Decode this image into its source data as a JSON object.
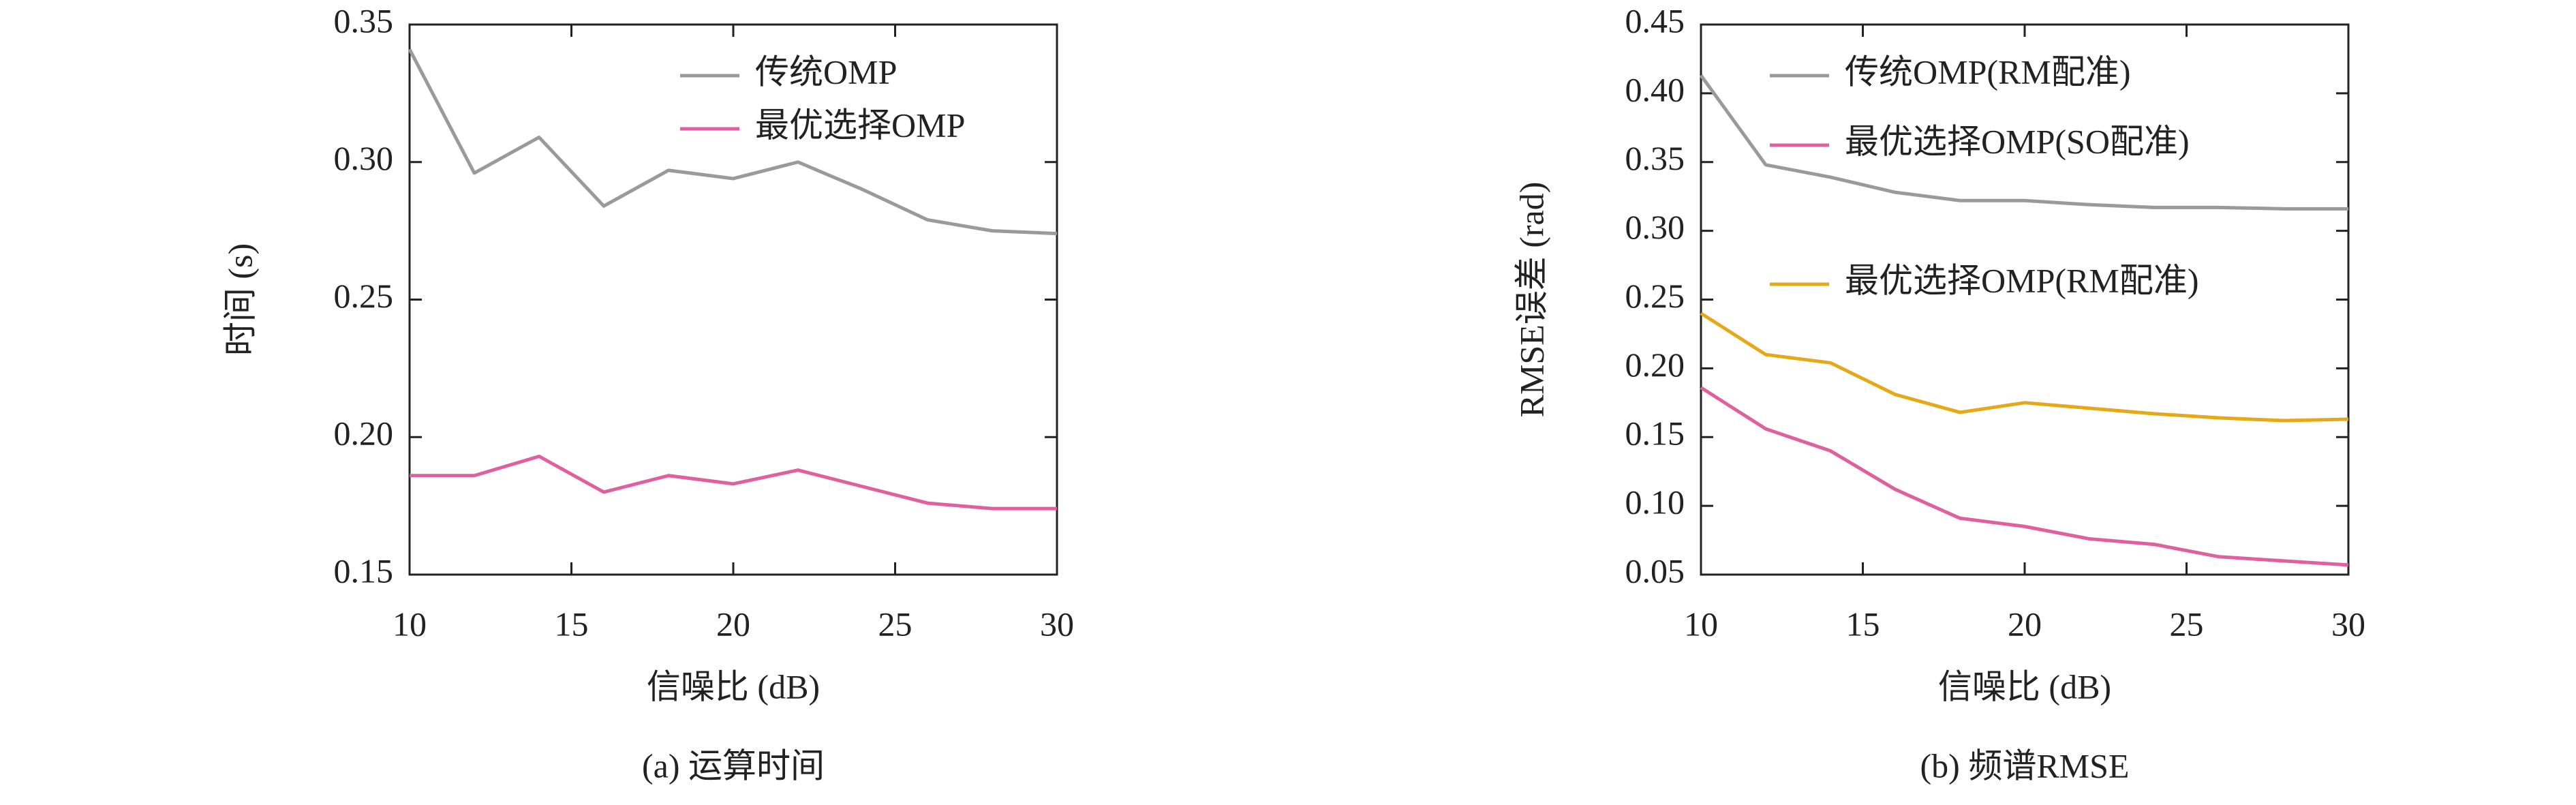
{
  "chart_data": [
    {
      "type": "line",
      "caption": "(a) 运算时间",
      "xlabel": "信噪比 (dB)",
      "ylabel": "时间 (s)",
      "x": [
        10,
        12,
        14,
        16,
        18,
        20,
        22,
        24,
        26,
        28,
        30
      ],
      "xlim": [
        10,
        30
      ],
      "xticks": [
        10,
        15,
        20,
        25,
        30
      ],
      "ylim": [
        0.15,
        0.35
      ],
      "yticks": [
        0.15,
        {
          "value": 0.2,
          "label": "0.20"
        },
        0.25,
        {
          "value": 0.3,
          "label": "0.30"
        },
        0.35
      ],
      "legend": "upper right",
      "series": [
        {
          "name": "传统OMP",
          "color": "#9a9a9a",
          "values": [
            0.341,
            0.296,
            0.309,
            0.284,
            0.297,
            0.294,
            0.3,
            0.29,
            0.279,
            0.275,
            0.274
          ]
        },
        {
          "name": "最优选择OMP",
          "color": "#e0609f",
          "values": [
            0.186,
            0.186,
            0.193,
            0.18,
            0.186,
            0.183,
            0.188,
            0.182,
            0.176,
            0.174,
            0.174
          ]
        }
      ]
    },
    {
      "type": "line",
      "caption": "(b) 频谱RMSE",
      "xlabel": "信噪比 (dB)",
      "ylabel": "RMSE误差 (rad)",
      "x": [
        10,
        12,
        14,
        16,
        18,
        20,
        22,
        24,
        26,
        28,
        30
      ],
      "xlim": [
        10,
        30
      ],
      "xticks": [
        10,
        15,
        20,
        25,
        30
      ],
      "ylim": [
        0.05,
        0.45
      ],
      "yticks": [
        0.05,
        {
          "value": 0.1,
          "label": "0.10"
        },
        0.15,
        {
          "value": 0.2,
          "label": "0.20"
        },
        0.25,
        {
          "value": 0.3,
          "label": "0.30"
        },
        0.35,
        {
          "value": 0.4,
          "label": "0.40"
        },
        0.45
      ],
      "legend": "upper right",
      "series": [
        {
          "name": "传统OMP(RM配准)",
          "color": "#9a9a9a",
          "values": [
            0.413,
            0.348,
            0.339,
            0.328,
            0.322,
            0.322,
            0.319,
            0.317,
            0.317,
            0.316,
            0.316
          ]
        },
        {
          "name": "最优选择OMP(SO配准)",
          "color": "#e0609f",
          "values": [
            0.186,
            0.156,
            0.14,
            0.112,
            0.091,
            0.085,
            0.076,
            0.072,
            0.063,
            0.06,
            0.057
          ]
        },
        {
          "name": "最优选择OMP(RM配准)",
          "color": "#e6a817",
          "values": [
            0.24,
            0.21,
            0.204,
            0.181,
            0.168,
            0.175,
            0.171,
            0.167,
            0.164,
            0.162,
            0.163
          ]
        }
      ]
    }
  ]
}
